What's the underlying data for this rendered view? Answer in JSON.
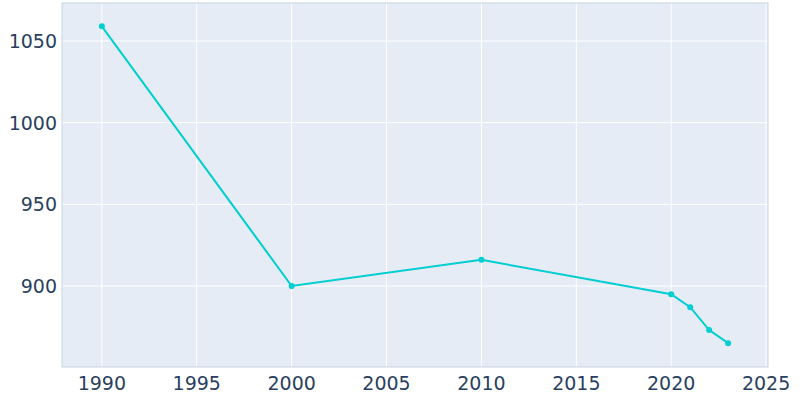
{
  "chart_data": {
    "type": "line",
    "x": [
      1990,
      2000,
      2010,
      2020,
      2021,
      2022,
      2023
    ],
    "values": [
      1059,
      900,
      916,
      895,
      887,
      873,
      865
    ],
    "color": "#00ced1",
    "marker": "circle",
    "xlim": [
      1987.9,
      2025.1
    ],
    "xticks": [
      1990,
      1995,
      2000,
      2005,
      2010,
      2015,
      2020,
      2025
    ],
    "ylim": [
      850.4,
      1073.3
    ],
    "yticks": [
      900,
      950,
      1000,
      1050
    ],
    "grid": true
  }
}
